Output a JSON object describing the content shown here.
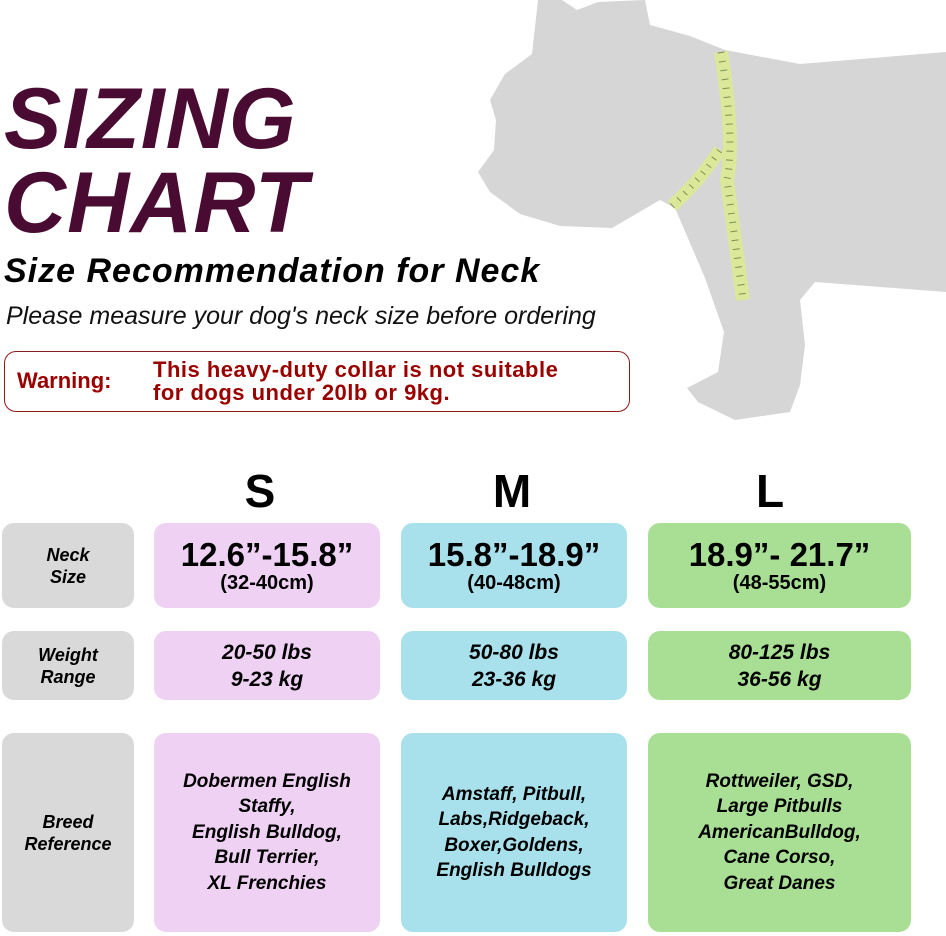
{
  "title_line1": "SIZING",
  "title_line2": "CHART",
  "subtitle": "Size Recommendation for Neck",
  "instruction": "Please measure your dog's neck size before ordering",
  "warning": {
    "label": "Warning:",
    "message_line1": "This heavy-duty collar is not suitable",
    "message_line2": "for dogs under 20lb or 9kg."
  },
  "colors": {
    "title": "#4a0b33",
    "warning": "#990000",
    "label_bg": "#d9d9d9",
    "small": "#efd1f3",
    "medium": "#a8e0ec",
    "large": "#a9df94",
    "dog": "#d6d6d6",
    "tape": "#dbe89a"
  },
  "row_labels": {
    "neck": [
      "Neck",
      "Size"
    ],
    "weight": [
      "Weight",
      "Range"
    ],
    "breed": [
      "Breed",
      "Reference"
    ]
  },
  "sizes": [
    {
      "name": "S",
      "neck_in": "12.6”-15.8”",
      "neck_cm": "(32-40cm)",
      "weight_lbs": "20-50 lbs",
      "weight_kg": "9-23 kg",
      "breeds": [
        "Dobermen English",
        "Staffy,",
        "English Bulldog,",
        "Bull Terrier,",
        "XL Frenchies"
      ]
    },
    {
      "name": "M",
      "neck_in": "15.8”-18.9”",
      "neck_cm": "(40-48cm)",
      "weight_lbs": "50-80 lbs",
      "weight_kg": "23-36 kg",
      "breeds": [
        "Amstaff, Pitbull,",
        "Labs,Ridgeback,",
        "Boxer,Goldens,",
        "English Bulldogs"
      ]
    },
    {
      "name": "L",
      "neck_in": "18.9”- 21.7”",
      "neck_cm": "(48-55cm)",
      "weight_lbs": "80-125 lbs",
      "weight_kg": "36-56 kg",
      "breeds": [
        "Rottweiler, GSD,",
        "Large Pitbulls",
        "AmericanBulldog,",
        "Cane Corso,",
        "Great Danes"
      ]
    }
  ]
}
